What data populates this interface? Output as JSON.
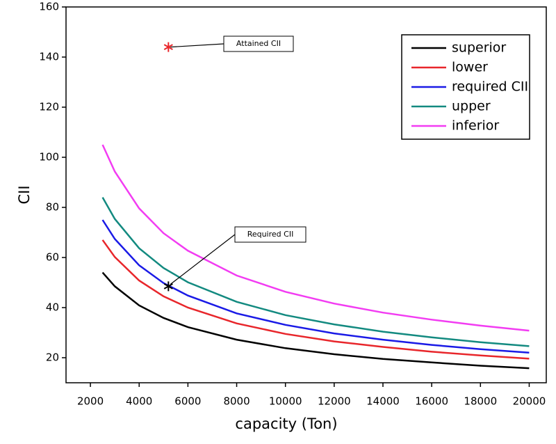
{
  "chart_data": {
    "type": "line",
    "x_label": "capacity (Ton)",
    "y_label": "CII",
    "x": [
      2500,
      3000,
      4000,
      5000,
      6000,
      8000,
      10000,
      12000,
      14000,
      16000,
      18000,
      20000
    ],
    "series": [
      {
        "name": "superior",
        "color": "#000000",
        "values": [
          54,
          48.5,
          40.9,
          35.9,
          32.2,
          27.2,
          23.8,
          21.4,
          19.5,
          18.1,
          16.8,
          15.8
        ]
      },
      {
        "name": "lower",
        "color": "#e8262b",
        "values": [
          67,
          60.2,
          50.8,
          44.5,
          40.0,
          33.7,
          29.5,
          26.5,
          24.3,
          22.4,
          20.9,
          19.6
        ]
      },
      {
        "name": "required CII",
        "color": "#1a1ae6",
        "values": [
          75,
          67.4,
          56.9,
          49.8,
          44.8,
          37.7,
          33.1,
          29.7,
          27.2,
          25.1,
          23.4,
          22.0
        ]
      },
      {
        "name": "upper",
        "color": "#138a80",
        "values": [
          84,
          75.4,
          63.7,
          55.8,
          50.1,
          42.3,
          37.0,
          33.3,
          30.4,
          28.1,
          26.2,
          24.6
        ]
      },
      {
        "name": "inferior",
        "color": "#f23cf2",
        "values": [
          105,
          94.3,
          79.6,
          69.7,
          62.7,
          52.8,
          46.3,
          41.6,
          38.0,
          35.2,
          32.8,
          30.8
        ]
      }
    ],
    "annotations": [
      {
        "text": "Attained CII",
        "x": 5200,
        "y": 144,
        "marker_color": "#e8262b"
      },
      {
        "text": "Required CII",
        "x": 5200,
        "y": 48.5,
        "marker_color": "#000000"
      }
    ],
    "xlim": [
      1000,
      20700
    ],
    "ylim": [
      10,
      160
    ],
    "xticks": [
      2000,
      4000,
      6000,
      8000,
      10000,
      12000,
      14000,
      16000,
      18000,
      20000
    ],
    "yticks": [
      20,
      40,
      60,
      80,
      100,
      120,
      140,
      160
    ],
    "legend": "upper-right"
  }
}
